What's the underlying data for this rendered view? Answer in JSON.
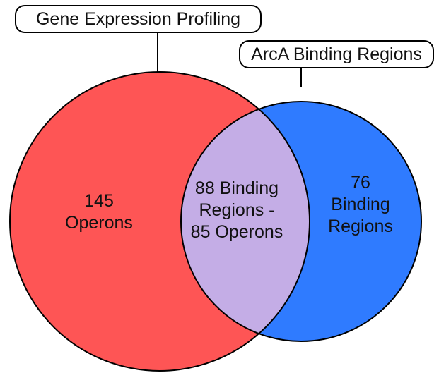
{
  "sets": {
    "left": {
      "label": "Gene Expression Profiling",
      "color": "#fe5555",
      "lines": [
        "145",
        "Operons"
      ]
    },
    "right": {
      "label": "ArcA Binding Regions",
      "color": "#2f7bff",
      "lines": [
        "76",
        "Binding",
        "Regions"
      ]
    },
    "overlap": {
      "color": "#c4ade6",
      "lines": [
        "88 Binding",
        "Regions -",
        "85 Operons"
      ]
    }
  }
}
